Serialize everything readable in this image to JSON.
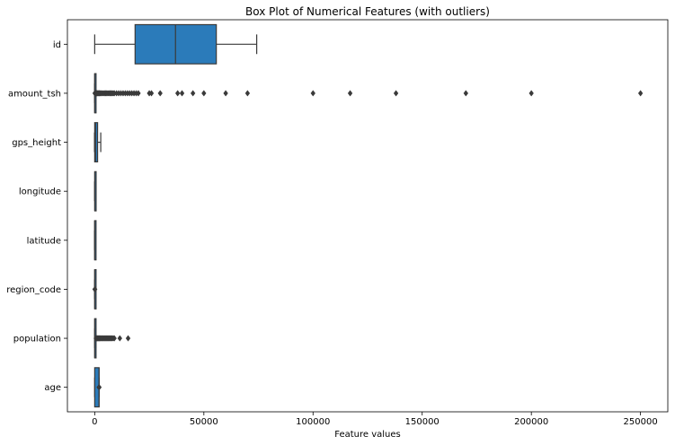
{
  "chart_data": {
    "type": "box",
    "title": "Box Plot of Numerical Features (with outliers)",
    "xlabel": "Feature values",
    "ylabel": "",
    "xlim": [
      -12500,
      262500
    ],
    "xticks": [
      0,
      50000,
      100000,
      150000,
      200000,
      250000
    ],
    "xtick_labels": [
      "0",
      "50000",
      "100000",
      "150000",
      "200000",
      "250000"
    ],
    "grid": false,
    "legend": "none",
    "box_color": "#2b7bba",
    "line_color": "#3a3a3a",
    "categories": [
      "id",
      "amount_tsh",
      "gps_height",
      "longitude",
      "latitude",
      "region_code",
      "population",
      "age"
    ],
    "series": [
      {
        "category": "id",
        "whisker_low": 0,
        "q1": 18500,
        "median": 37000,
        "q3": 55700,
        "whisker_high": 74200,
        "outliers": []
      },
      {
        "category": "amount_tsh",
        "whisker_low": 0,
        "q1": 0,
        "median": 0,
        "q3": 20,
        "whisker_high": 50,
        "outliers": [
          70,
          100,
          150,
          200,
          250,
          300,
          400,
          500,
          600,
          700,
          800,
          900,
          1000,
          1200,
          1500,
          1800,
          2000,
          2200,
          2500,
          3000,
          3500,
          4000,
          4500,
          5000,
          5500,
          6000,
          6500,
          7000,
          7500,
          8000,
          8500,
          9000,
          10000,
          11000,
          12000,
          13000,
          14000,
          15000,
          16000,
          17000,
          18000,
          19000,
          20000,
          25000,
          26000,
          30000,
          38000,
          40000,
          45000,
          50000,
          60000,
          70000,
          100000,
          117000,
          138000,
          170000,
          200000,
          250000
        ]
      },
      {
        "category": "gps_height",
        "whisker_low": -90,
        "q1": 0,
        "median": 370,
        "q3": 1320,
        "whisker_high": 2770,
        "outliers": []
      },
      {
        "category": "longitude",
        "whisker_low": 0,
        "q1": 33,
        "median": 35,
        "q3": 37,
        "whisker_high": 40,
        "outliers": []
      },
      {
        "category": "latitude",
        "whisker_low": -12,
        "q1": -8,
        "median": -5,
        "q3": -3,
        "whisker_high": 0,
        "outliers": []
      },
      {
        "category": "region_code",
        "whisker_low": 1,
        "q1": 5,
        "median": 12,
        "q3": 17,
        "whisker_high": 35,
        "outliers": [
          60,
          80,
          90,
          99
        ]
      },
      {
        "category": "population",
        "whisker_low": 0,
        "q1": 0,
        "median": 25,
        "q3": 215,
        "whisker_high": 537,
        "outliers": [
          600,
          800,
          1000,
          1200,
          1500,
          1800,
          2000,
          2300,
          2600,
          3000,
          3300,
          3600,
          4000,
          4400,
          4800,
          5200,
          5600,
          6000,
          6400,
          6800,
          7200,
          7600,
          8000,
          8500,
          9000,
          11500,
          15300
        ]
      },
      {
        "category": "age",
        "whisker_low": 0,
        "q1": 0,
        "median": 1986,
        "q3": 2004,
        "whisker_high": 2013,
        "outliers": [
          1999,
          2000,
          2002,
          2005,
          2007,
          2008,
          2010,
          2011,
          2012,
          2013
        ]
      }
    ]
  }
}
